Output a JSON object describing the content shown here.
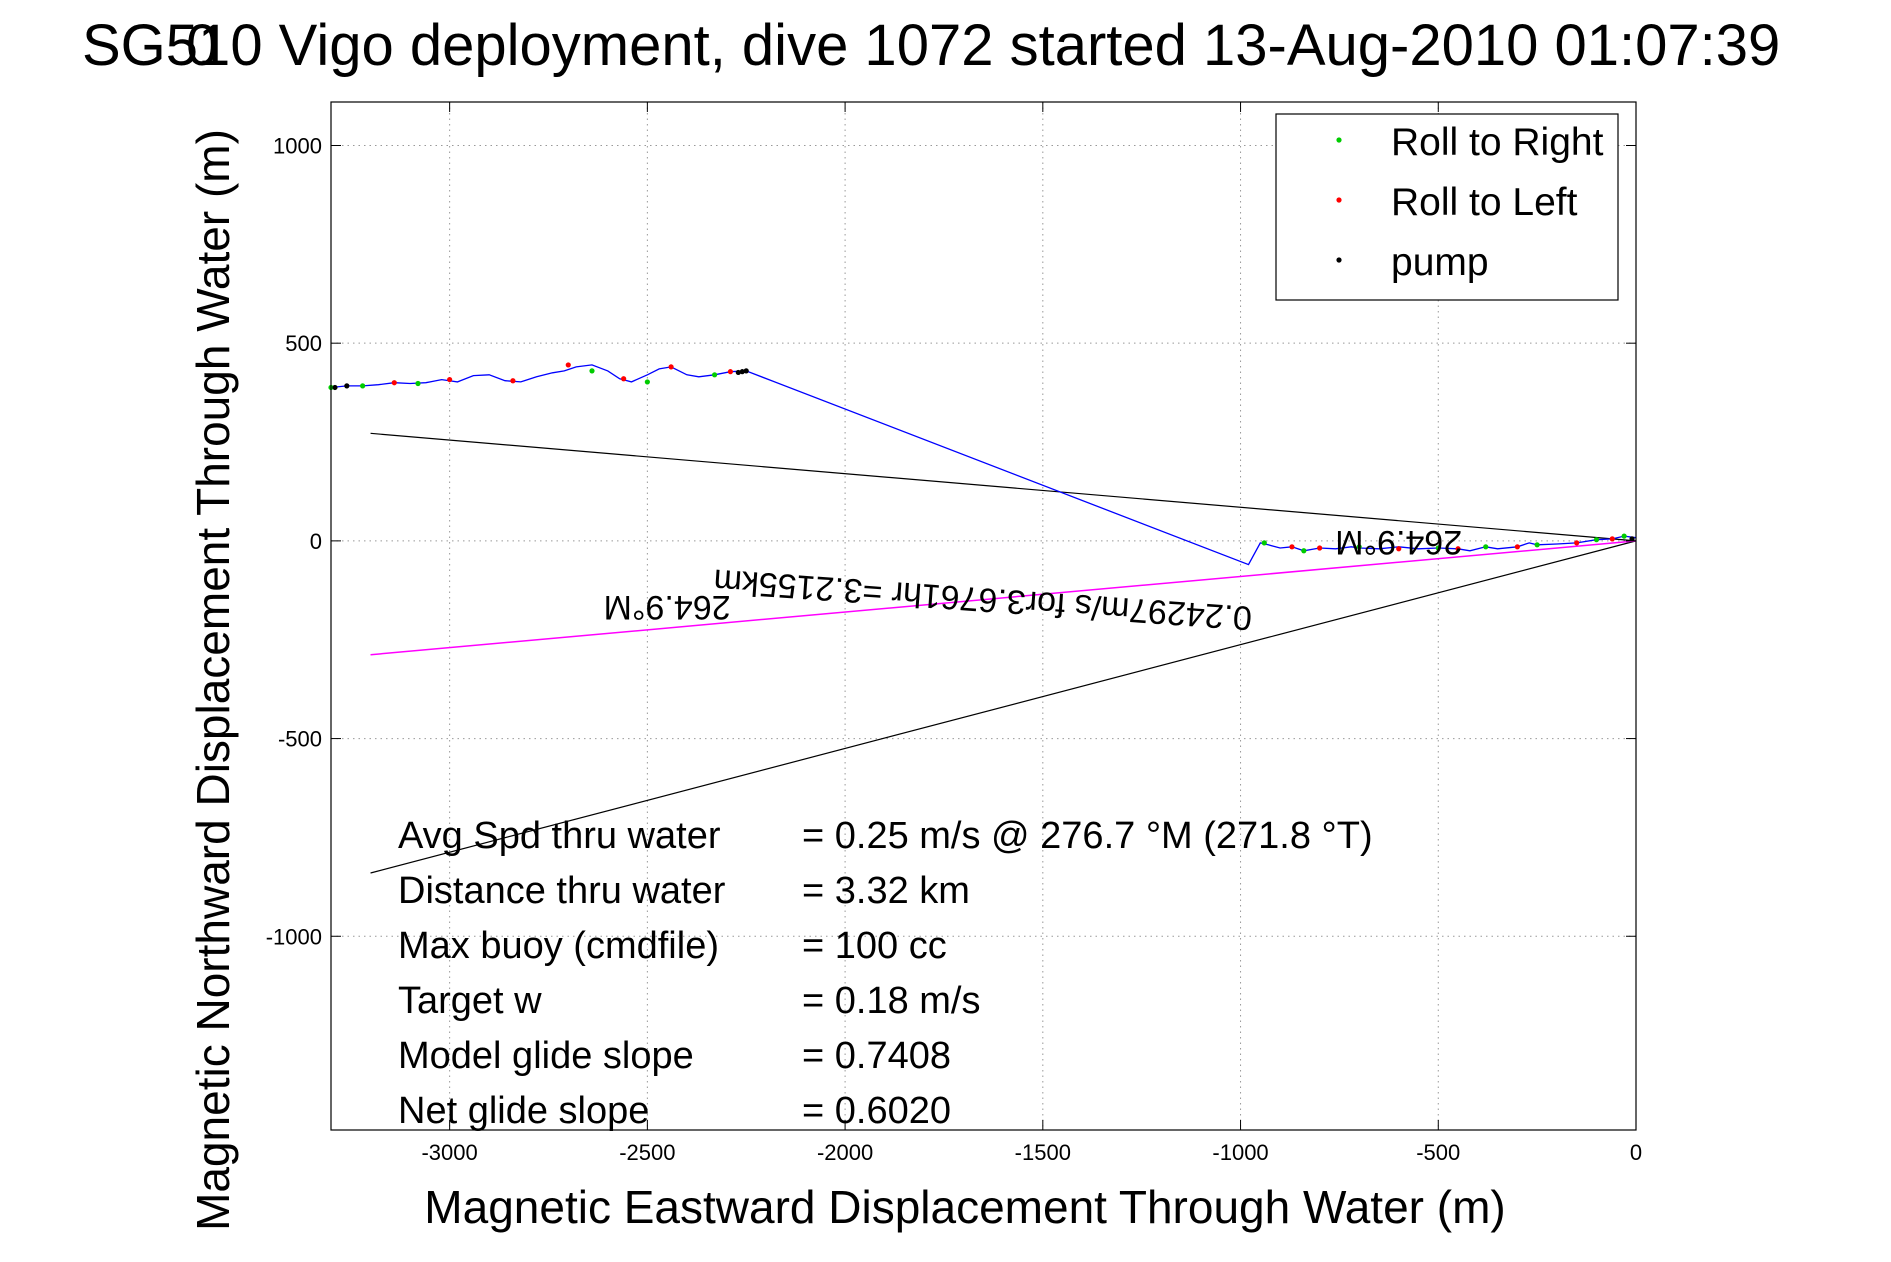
{
  "chart_data": {
    "type": "line",
    "title": "SG510 Vigo deployment, dive 1072 started 13-Aug-2010 01:07:39",
    "title_overlap_fragment": "0",
    "xlabel": "Magnetic Eastward Displacement Through Water (m)",
    "ylabel": "Magnetic Northward Displacement Through Water (m)",
    "xlim": [
      -3300,
      0
    ],
    "ylim": [
      -1490,
      1110
    ],
    "xticks": [
      -3000,
      -2500,
      -2000,
      -1500,
      -1000,
      -500,
      0
    ],
    "yticks": [
      1000,
      500,
      0,
      -500,
      -1000
    ],
    "grid": true,
    "legend": {
      "placement": "top-right",
      "entries": [
        {
          "label": "Roll to Right",
          "color": "#00cc00"
        },
        {
          "label": "Roll to Left",
          "color": "#ff0000"
        },
        {
          "label": "pump",
          "color": "#000000"
        }
      ]
    },
    "track": {
      "name": "",
      "color": "#0000ff",
      "x": [
        0,
        -30,
        -60,
        -100,
        -150,
        -200,
        -250,
        -270,
        -300,
        -350,
        -380,
        -420,
        -450,
        -500,
        -550,
        -600,
        -650,
        -700,
        -720,
        -760,
        -800,
        -840,
        -870,
        -900,
        -930,
        -950,
        -980,
        -2250,
        -2290,
        -2330,
        -2370,
        -2400,
        -2440,
        -2470,
        -2500,
        -2540,
        -2570,
        -2600,
        -2640,
        -2680,
        -2710,
        -2740,
        -2780,
        -2820,
        -2860,
        -2900,
        -2940,
        -2980,
        -3020,
        -3060,
        -3100,
        -3140,
        -3180,
        -3220,
        -3260,
        -3300
      ],
      "y": [
        8,
        12,
        5,
        3,
        -5,
        -8,
        -10,
        -5,
        -15,
        -20,
        -15,
        -25,
        -20,
        -18,
        -20,
        -15,
        -20,
        -18,
        -15,
        -20,
        -18,
        -25,
        -15,
        -18,
        -10,
        -5,
        -60,
        430,
        428,
        420,
        415,
        420,
        440,
        435,
        420,
        402,
        410,
        430,
        445,
        440,
        430,
        425,
        415,
        402,
        405,
        420,
        418,
        402,
        408,
        400,
        398,
        400,
        395,
        392,
        392,
        388
      ]
    },
    "roll_right_points": {
      "x": [
        -30,
        -100,
        -250,
        -380,
        -500,
        -700,
        -840,
        -940,
        -2330,
        -2500,
        -2640,
        -3080,
        -3220,
        -3300
      ],
      "y": [
        12,
        3,
        -10,
        -15,
        -18,
        -15,
        -25,
        -5,
        420,
        402,
        430,
        398,
        392,
        388
      ]
    },
    "roll_left_points": {
      "x": [
        -60,
        -150,
        -300,
        -450,
        -600,
        -800,
        -870,
        -2290,
        -2440,
        -2560,
        -2700,
        -2840,
        -3000,
        -3140
      ],
      "y": [
        5,
        -5,
        -15,
        -20,
        -20,
        -18,
        -15,
        428,
        440,
        410,
        445,
        405,
        408,
        400
      ]
    },
    "pump_points": {
      "x": [
        -10,
        -2250,
        -2260,
        -2270,
        -3260,
        -3290
      ],
      "y": [
        5,
        430,
        428,
        426,
        392,
        388
      ]
    },
    "black_lines": [
      {
        "x": [
          0,
          -3200
        ],
        "y": [
          0,
          272
        ]
      },
      {
        "x": [
          0,
          -3200
        ],
        "y": [
          0,
          -840
        ]
      }
    ],
    "magenta_line": {
      "x": [
        0,
        -3200
      ],
      "y": [
        0,
        -288
      ],
      "color": "#ff00ff"
    },
    "annotations": [
      {
        "text": "264.9°M",
        "x": -600,
        "y": 25,
        "rotation": 180
      },
      {
        "text": "264.9°M",
        "x": -2450,
        "y": -140,
        "rotation": 180
      },
      {
        "text": "0.24297m/s for3.6761hr =3.2155km",
        "x": -1650,
        "y": -120,
        "rotation": 184
      }
    ],
    "info_panel": [
      {
        "label": "Avg Spd thru water",
        "value": "=  0.25 m/s @ 276.7 °M (271.8 °T)"
      },
      {
        "label": "Distance thru water",
        "value": "=  3.32 km"
      },
      {
        "label": "Max buoy (cmdfile)",
        "value": "= 100 cc"
      },
      {
        "label": "Target w",
        "value": "= 0.18 m/s"
      },
      {
        "label": "Model glide slope",
        "value": "= 0.7408"
      },
      {
        "label": "Net glide slope",
        "value": "= 0.6020"
      }
    ]
  }
}
